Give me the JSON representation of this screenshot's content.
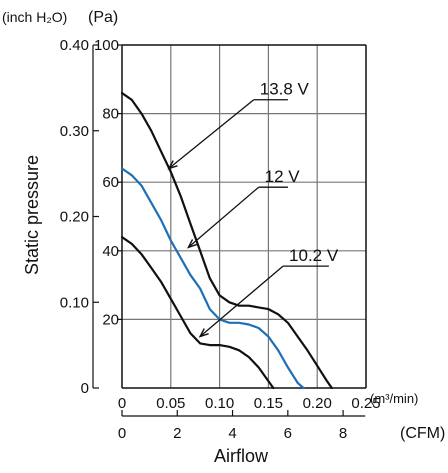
{
  "chart_data": {
    "type": "line",
    "title": "",
    "ylabel": "Static pressure",
    "xlabel": "Airflow",
    "y_units_left": "(inch H₂O)",
    "y_units_right": "(Pa)",
    "x_units_top": "(m³/min)",
    "x_units_bottom": "(CFM)",
    "ylim": [
      0,
      100
    ],
    "xlim": [
      0,
      0.25
    ],
    "grid": true,
    "y_ticks_pa": [
      "100",
      "80",
      "60",
      "40",
      "20"
    ],
    "y_ticks_pa_values": [
      100,
      80,
      60,
      40,
      20
    ],
    "y_ticks_inch": [
      "0.40",
      "0.30",
      "0.20",
      "0.10",
      "0"
    ],
    "y_ticks_inch_values": [
      0.4,
      0.3,
      0.2,
      0.1,
      0
    ],
    "x_ticks_m3min": [
      "0",
      "0.05",
      "0.10",
      "0.15",
      "0.20",
      "0.25"
    ],
    "x_ticks_m3min_values": [
      0,
      0.05,
      0.1,
      0.15,
      0.2,
      0.25
    ],
    "x_ticks_cfm": [
      "0",
      "2",
      "4",
      "6",
      "8"
    ],
    "x_ticks_cfm_values": [
      0,
      2,
      4,
      6,
      8
    ],
    "series": [
      {
        "name": "13.8 V",
        "color": "#111111",
        "x": [
          0,
          0.01,
          0.02,
          0.03,
          0.04,
          0.05,
          0.06,
          0.07,
          0.08,
          0.09,
          0.1,
          0.11,
          0.12,
          0.13,
          0.14,
          0.15,
          0.16,
          0.17,
          0.18,
          0.19,
          0.2,
          0.21,
          0.215
        ],
        "y": [
          86,
          84,
          80,
          75,
          69,
          63,
          56,
          48,
          40,
          32,
          27,
          25,
          24,
          24,
          23.5,
          23,
          21.5,
          19,
          15,
          11,
          6.5,
          2,
          0
        ]
      },
      {
        "name": "12 V",
        "color": "#1f6fb5",
        "x": [
          0,
          0.01,
          0.02,
          0.03,
          0.04,
          0.05,
          0.06,
          0.07,
          0.08,
          0.09,
          0.1,
          0.11,
          0.12,
          0.13,
          0.14,
          0.15,
          0.16,
          0.17,
          0.18,
          0.186
        ],
        "y": [
          64,
          62,
          59,
          54,
          49,
          43,
          38,
          33,
          29,
          23,
          20,
          19,
          19,
          18.5,
          17.5,
          15,
          11,
          6,
          1.5,
          0
        ]
      },
      {
        "name": "10.2 V",
        "color": "#111111",
        "x": [
          0,
          0.01,
          0.02,
          0.03,
          0.04,
          0.05,
          0.06,
          0.07,
          0.08,
          0.09,
          0.1,
          0.11,
          0.12,
          0.13,
          0.14,
          0.15,
          0.155
        ],
        "y": [
          44,
          42,
          39,
          35,
          31,
          26,
          21,
          16,
          13,
          12.5,
          12.5,
          12,
          11,
          9,
          6,
          2,
          0
        ]
      }
    ],
    "annotations": [
      {
        "series": "13.8 V",
        "label": "13.8 V",
        "point_x": 0.048,
        "point_y": 64,
        "text_x": 0.135,
        "text_y": 85.5,
        "line_x2": 0.17
      },
      {
        "series": "12 V",
        "label": "12 V",
        "point_x": 0.068,
        "point_y": 41,
        "text_x": 0.14,
        "text_y": 60,
        "line_x2": 0.17
      },
      {
        "series": "10.2 V",
        "label": "10.2 V",
        "point_x": 0.08,
        "point_y": 15,
        "text_x": 0.165,
        "text_y": 37,
        "line_x2": 0.212
      }
    ]
  }
}
